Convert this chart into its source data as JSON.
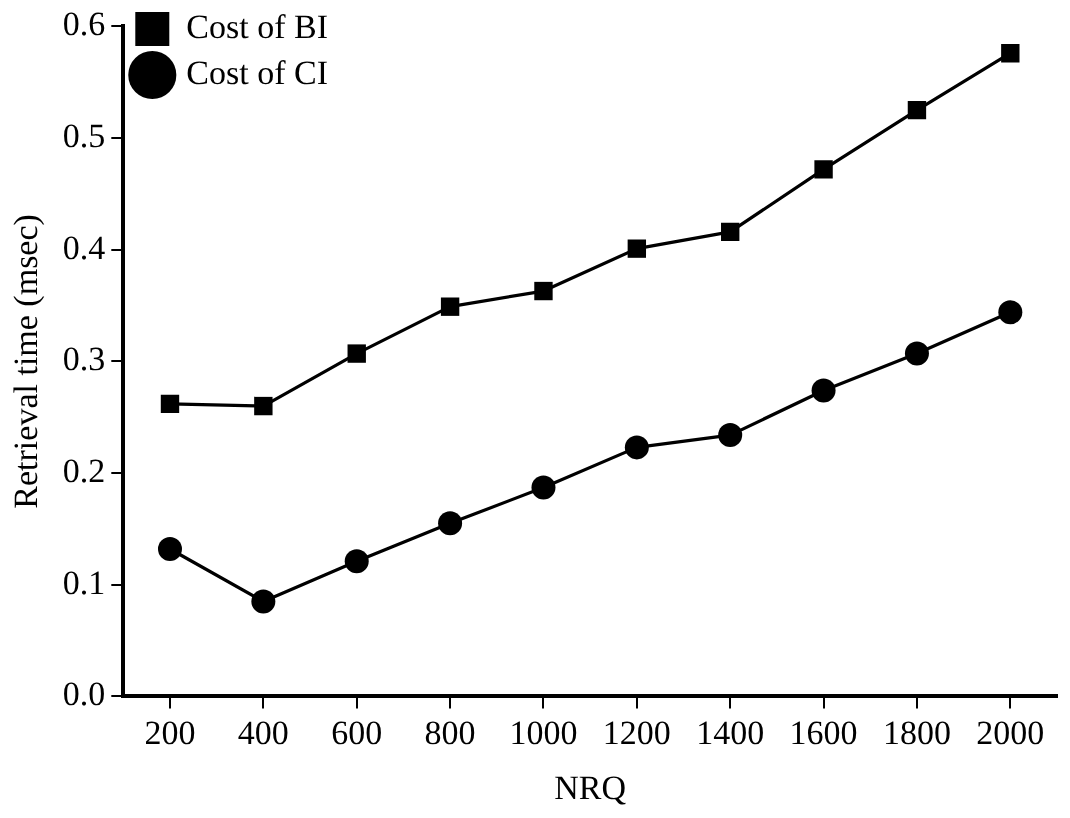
{
  "chart_data": {
    "type": "line",
    "xlabel": "NRQ",
    "ylabel": "Retrieval time (msec)",
    "categories": [
      "200",
      "400",
      "600",
      "800",
      "1000",
      "1200",
      "1400",
      "1600",
      "1800",
      "2000"
    ],
    "series": [
      {
        "name": "Cost of BI",
        "color": "#000000",
        "marker": "square",
        "values": [
          0.262,
          0.26,
          0.307,
          0.349,
          0.363,
          0.401,
          0.416,
          0.472,
          0.525,
          0.576
        ]
      },
      {
        "name": "Cost of CI",
        "color": "#000000",
        "marker": "circle",
        "values": [
          0.132,
          0.085,
          0.121,
          0.155,
          0.187,
          0.223,
          0.234,
          0.274,
          0.307,
          0.344
        ]
      }
    ],
    "ylim": [
      0,
      0.6
    ],
    "yticks": [
      {
        "value": 0,
        "label": "0.0"
      },
      {
        "value": 0.1,
        "label": "0.1"
      },
      {
        "value": 0.2,
        "label": "0.2"
      },
      {
        "value": 0.3,
        "label": "0.3"
      },
      {
        "value": 0.4,
        "label": "0.4"
      },
      {
        "value": 0.5,
        "label": "0.5"
      },
      {
        "value": 0.6,
        "label": "0.6"
      }
    ],
    "grid": false,
    "legend": "top left",
    "line_style": "solid"
  }
}
